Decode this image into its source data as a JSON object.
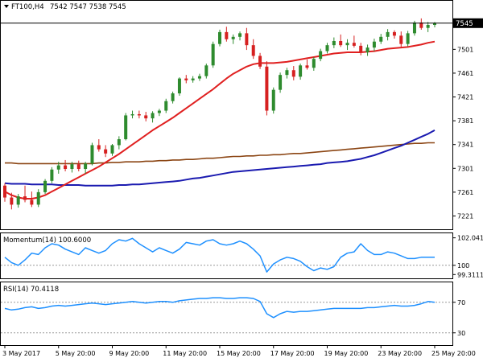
{
  "chart_data": [
    {
      "type": "candlestick",
      "title": "FT100,H4",
      "ohlc_label": "7542 7547 7538 7545",
      "header_arrow": "triangle-down-icon",
      "current_price": "7545",
      "ylim": [
        7200,
        7565
      ],
      "y_ticks": [
        "7501",
        "7461",
        "7421",
        "7381",
        "7341",
        "7301",
        "7261",
        "7221"
      ],
      "y_tick_values": [
        7501,
        7461,
        7421,
        7381,
        7341,
        7301,
        7261,
        7221
      ],
      "colors": {
        "up": "#2e8b2e",
        "down": "#d62020",
        "sma_fast": "#e02020",
        "sma_mid": "#8b4513",
        "sma_slow": "#1a1ab0",
        "price_line": "#000000"
      },
      "candles": [
        [
          7272,
          7276,
          7245,
          7252
        ],
        [
          7252,
          7260,
          7232,
          7240
        ],
        [
          7240,
          7258,
          7235,
          7254
        ],
        [
          7254,
          7272,
          7244,
          7248
        ],
        [
          7248,
          7262,
          7236,
          7240
        ],
        [
          7240,
          7266,
          7236,
          7261
        ],
        [
          7261,
          7283,
          7258,
          7280
        ],
        [
          7280,
          7303,
          7276,
          7299
        ],
        [
          7299,
          7312,
          7292,
          7306
        ],
        [
          7306,
          7315,
          7296,
          7300
        ],
        [
          7300,
          7312,
          7294,
          7308
        ],
        [
          7308,
          7314,
          7296,
          7300
        ],
        [
          7300,
          7312,
          7292,
          7309
        ],
        [
          7309,
          7344,
          7306,
          7340
        ],
        [
          7340,
          7350,
          7329,
          7333
        ],
        [
          7333,
          7340,
          7320,
          7326
        ],
        [
          7326,
          7342,
          7322,
          7340
        ],
        [
          7340,
          7355,
          7333,
          7350
        ],
        [
          7350,
          7394,
          7348,
          7390
        ],
        [
          7390,
          7398,
          7385,
          7392
        ],
        [
          7392,
          7398,
          7385,
          7390
        ],
        [
          7390,
          7396,
          7380,
          7385
        ],
        [
          7385,
          7397,
          7378,
          7394
        ],
        [
          7394,
          7401,
          7389,
          7398
        ],
        [
          7398,
          7418,
          7394,
          7414
        ],
        [
          7414,
          7430,
          7410,
          7427
        ],
        [
          7427,
          7454,
          7423,
          7452
        ],
        [
          7452,
          7458,
          7444,
          7449
        ],
        [
          7449,
          7456,
          7445,
          7452
        ],
        [
          7452,
          7460,
          7448,
          7456
        ],
        [
          7456,
          7477,
          7452,
          7474
        ],
        [
          7474,
          7514,
          7470,
          7510
        ],
        [
          7510,
          7534,
          7506,
          7530
        ],
        [
          7530,
          7539,
          7514,
          7518
        ],
        [
          7518,
          7526,
          7510,
          7522
        ],
        [
          7522,
          7531,
          7516,
          7528
        ],
        [
          7528,
          7537,
          7500,
          7508
        ],
        [
          7508,
          7518,
          7485,
          7490
        ],
        [
          7490,
          7495,
          7468,
          7472
        ],
        [
          7472,
          7481,
          7390,
          7398
        ],
        [
          7398,
          7437,
          7393,
          7433
        ],
        [
          7433,
          7462,
          7428,
          7458
        ],
        [
          7458,
          7470,
          7452,
          7466
        ],
        [
          7466,
          7473,
          7449,
          7455
        ],
        [
          7455,
          7477,
          7450,
          7474
        ],
        [
          7474,
          7484,
          7467,
          7470
        ],
        [
          7470,
          7488,
          7465,
          7485
        ],
        [
          7485,
          7502,
          7481,
          7498
        ],
        [
          7498,
          7512,
          7494,
          7508
        ],
        [
          7508,
          7521,
          7503,
          7515
        ],
        [
          7515,
          7526,
          7505,
          7508
        ],
        [
          7508,
          7518,
          7500,
          7512
        ],
        [
          7512,
          7524,
          7504,
          7507
        ],
        [
          7507,
          7512,
          7491,
          7496
        ],
        [
          7496,
          7509,
          7490,
          7504
        ],
        [
          7504,
          7519,
          7498,
          7514
        ],
        [
          7514,
          7527,
          7510,
          7522
        ],
        [
          7522,
          7535,
          7516,
          7530
        ],
        [
          7530,
          7533,
          7519,
          7524
        ],
        [
          7524,
          7531,
          7505,
          7510
        ],
        [
          7510,
          7532,
          7506,
          7528
        ],
        [
          7528,
          7549,
          7524,
          7546
        ],
        [
          7546,
          7553,
          7534,
          7537
        ],
        [
          7537,
          7547,
          7530,
          7542
        ],
        [
          7542,
          7547,
          7538,
          7545
        ]
      ],
      "sma_fast": [
        7262,
        7256,
        7252,
        7250,
        7250,
        7252,
        7256,
        7262,
        7268,
        7274,
        7280,
        7286,
        7292,
        7298,
        7304,
        7311,
        7318,
        7325,
        7333,
        7341,
        7349,
        7357,
        7365,
        7372,
        7379,
        7386,
        7394,
        7402,
        7410,
        7418,
        7426,
        7434,
        7443,
        7452,
        7460,
        7466,
        7472,
        7476,
        7478,
        7478,
        7478,
        7479,
        7480,
        7482,
        7484,
        7486,
        7488,
        7490,
        7492,
        7494,
        7495,
        7496,
        7496,
        7496,
        7497,
        7498,
        7500,
        7502,
        7503,
        7504,
        7505,
        7507,
        7509,
        7512,
        7514
      ],
      "sma_mid": [
        7310,
        7310,
        7309,
        7309,
        7309,
        7309,
        7309,
        7309,
        7309,
        7309,
        7309,
        7309,
        7309,
        7309,
        7310,
        7310,
        7311,
        7311,
        7312,
        7312,
        7312,
        7313,
        7313,
        7314,
        7314,
        7315,
        7315,
        7316,
        7316,
        7317,
        7318,
        7318,
        7319,
        7320,
        7321,
        7321,
        7322,
        7322,
        7323,
        7323,
        7324,
        7324,
        7325,
        7326,
        7326,
        7327,
        7328,
        7329,
        7330,
        7331,
        7332,
        7333,
        7334,
        7335,
        7336,
        7337,
        7338,
        7339,
        7340,
        7341,
        7342,
        7343,
        7343,
        7344,
        7344
      ],
      "sma_slow": [
        7276,
        7275,
        7275,
        7275,
        7274,
        7274,
        7274,
        7274,
        7273,
        7273,
        7273,
        7273,
        7272,
        7272,
        7272,
        7272,
        7272,
        7273,
        7273,
        7274,
        7274,
        7275,
        7276,
        7277,
        7278,
        7279,
        7280,
        7282,
        7284,
        7285,
        7287,
        7289,
        7291,
        7293,
        7295,
        7296,
        7297,
        7298,
        7299,
        7300,
        7301,
        7302,
        7303,
        7304,
        7305,
        7306,
        7307,
        7308,
        7310,
        7311,
        7312,
        7313,
        7315,
        7317,
        7320,
        7323,
        7327,
        7331,
        7335,
        7339,
        7344,
        7349,
        7354,
        7359,
        7365
      ]
    },
    {
      "type": "line",
      "title": "Momentum(14) 100.6000",
      "ylim": [
        99.15,
        102.2
      ],
      "y_ticks": [
        "102.0416",
        "100",
        "99.3111"
      ],
      "y_tick_values": [
        102.0416,
        100,
        99.3111
      ],
      "ref_level": 100,
      "color": "#1e90ff",
      "values": [
        100.6,
        100.2,
        100.0,
        100.4,
        100.9,
        100.8,
        101.3,
        101.6,
        101.5,
        101.2,
        101.0,
        100.8,
        101.3,
        101.1,
        100.9,
        101.1,
        101.6,
        101.9,
        101.8,
        102.0,
        101.6,
        101.3,
        101.0,
        101.3,
        101.1,
        100.9,
        101.2,
        101.7,
        101.6,
        101.5,
        101.8,
        101.9,
        101.6,
        101.5,
        101.6,
        101.8,
        101.6,
        101.2,
        100.7,
        99.5,
        100.1,
        100.4,
        100.6,
        100.5,
        100.3,
        99.9,
        99.6,
        99.8,
        99.7,
        99.9,
        100.6,
        100.9,
        101.0,
        101.6,
        101.1,
        100.8,
        100.8,
        101.0,
        100.9,
        100.7,
        100.5,
        100.5,
        100.6,
        100.6,
        100.6
      ]
    },
    {
      "type": "line",
      "title": "RSI(14) 70.4118",
      "ylim": [
        15,
        95
      ],
      "y_ticks": [
        "70",
        "30"
      ],
      "y_tick_values": [
        70,
        30
      ],
      "ref_levels": [
        70,
        30
      ],
      "color": "#1e90ff",
      "values": [
        62,
        60,
        61,
        63,
        64,
        62,
        63,
        65,
        66,
        65,
        66,
        67,
        68,
        69,
        68,
        67,
        68,
        69,
        70,
        71,
        70,
        69,
        70,
        71,
        71,
        70,
        72,
        73,
        74,
        75,
        75,
        76,
        76,
        75,
        75,
        76,
        76,
        75,
        71,
        55,
        50,
        55,
        58,
        57,
        58,
        58,
        59,
        60,
        61,
        62,
        62,
        62,
        62,
        62,
        63,
        63,
        64,
        65,
        66,
        65,
        65,
        66,
        68,
        71,
        70
      ]
    }
  ],
  "x_axis": {
    "labels": [
      "3 May 2017",
      "5 May 20:00",
      "9 May 20:00",
      "11 May 20:00",
      "15 May 20:00",
      "17 May 20:00",
      "19 May 20:00",
      "23 May 20:00",
      "25 May 20:00"
    ],
    "label_bar_index": [
      0,
      8,
      16,
      24,
      32,
      40,
      48,
      56,
      64
    ]
  }
}
